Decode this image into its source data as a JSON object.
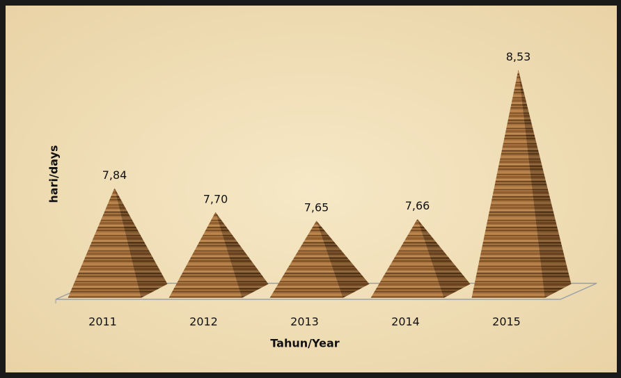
{
  "chart_data": {
    "type": "pyramid",
    "categories": [
      "2011",
      "2012",
      "2013",
      "2014",
      "2015"
    ],
    "values": [
      7.84,
      7.7,
      7.65,
      7.66,
      8.53
    ],
    "value_labels": [
      "7,84",
      "7,70",
      "7,65",
      "7,66",
      "8,53"
    ],
    "y_label": "hari/days",
    "x_label": "Tahun/Year",
    "ylim": [
      7.2,
      8.6
    ],
    "color": "#a0703c"
  }
}
